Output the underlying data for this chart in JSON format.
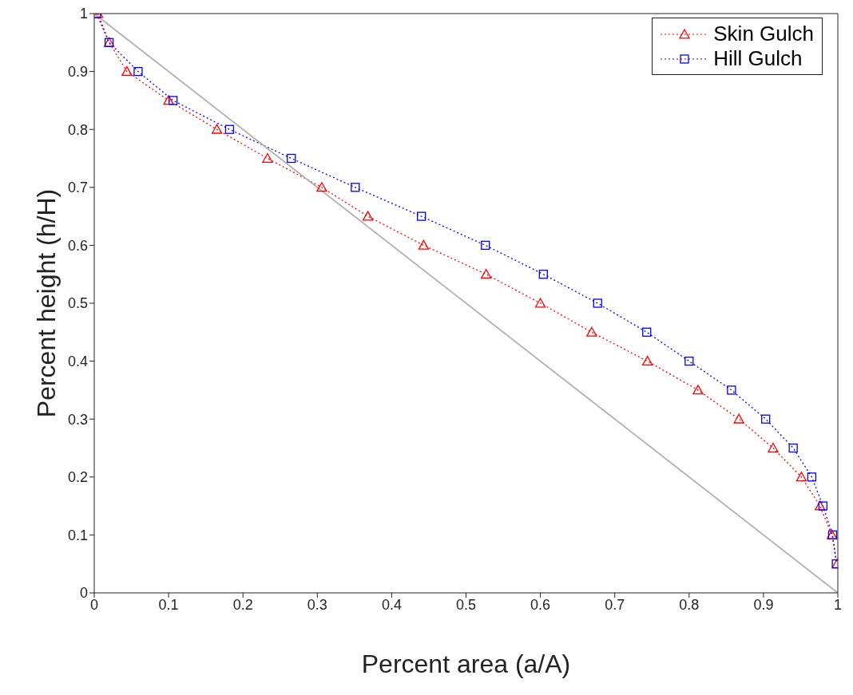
{
  "chart_data": {
    "type": "line",
    "xlabel": "Percent area (a/A)",
    "ylabel": "Percent height (h/H)",
    "xlim": [
      0,
      1
    ],
    "xticks": [
      0,
      0.1,
      0.2,
      0.3,
      0.4,
      0.5,
      0.6,
      0.7,
      0.8,
      0.9,
      1
    ],
    "ylim": [
      0,
      1
    ],
    "yticks": [
      0,
      0.1,
      0.2,
      0.3,
      0.4,
      0.5,
      0.6,
      0.7,
      0.8,
      0.9,
      1
    ],
    "grid": false,
    "legend": "top right",
    "line_style": "dotted",
    "series": [
      {
        "name": "Skin Gulch",
        "color": "#ff0000",
        "marker": "triangle",
        "x": [
          0.005,
          0.02,
          0.044,
          0.1,
          0.165,
          0.233,
          0.306,
          0.368,
          0.443,
          0.527,
          0.6,
          0.669,
          0.744,
          0.812,
          0.867,
          0.913,
          0.951,
          0.976,
          0.992,
          0.999
        ],
        "values": [
          1,
          0.95,
          0.9,
          0.85,
          0.8,
          0.75,
          0.7,
          0.65,
          0.6,
          0.55,
          0.5,
          0.45,
          0.4,
          0.35,
          0.3,
          0.25,
          0.2,
          0.15,
          0.1,
          0.05
        ]
      },
      {
        "name": "Hill Gulch",
        "color": "#0000ff",
        "marker": "square",
        "x": [
          0.003,
          0.02,
          0.059,
          0.106,
          0.182,
          0.265,
          0.351,
          0.44,
          0.526,
          0.604,
          0.677,
          0.743,
          0.8,
          0.857,
          0.903,
          0.94,
          0.965,
          0.98,
          0.993,
          0.998
        ],
        "values": [
          1,
          0.95,
          0.9,
          0.85,
          0.8,
          0.75,
          0.7,
          0.65,
          0.6,
          0.55,
          0.5,
          0.45,
          0.4,
          0.35,
          0.3,
          0.25,
          0.2,
          0.15,
          0.1,
          0.05
        ]
      },
      {
        "color": "#b0b0b0",
        "marker": "none",
        "line_style": "solid",
        "x": [
          0,
          1
        ],
        "values": [
          1,
          0
        ]
      }
    ]
  }
}
